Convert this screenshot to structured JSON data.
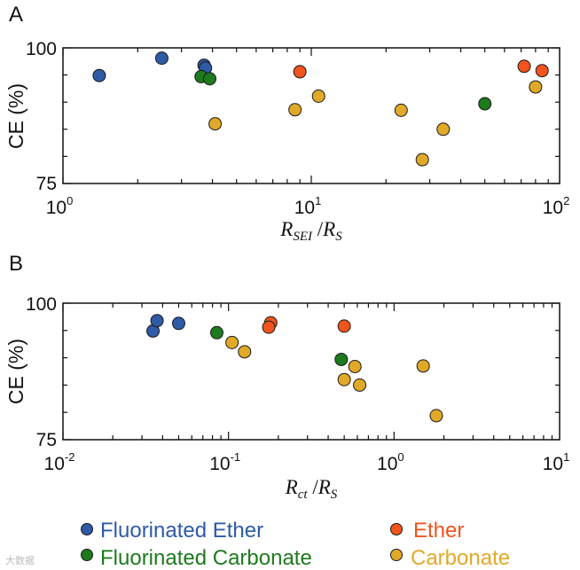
{
  "colors": {
    "fluorinated_ether": "#2e5aa6",
    "fluorinated_carbonate": "#1d7a1d",
    "ether": "#f1541c",
    "carbonate": "#e1a928",
    "axis": "#111111"
  },
  "legend": [
    {
      "key": "fluorinated_ether",
      "label": "Fluorinated Ether"
    },
    {
      "key": "ether",
      "label": "Ether"
    },
    {
      "key": "fluorinated_carbonate",
      "label": "Fluorinated Carbonate"
    },
    {
      "key": "carbonate",
      "label": "Carbonate"
    }
  ],
  "watermark": "大数据",
  "chart_data": [
    {
      "type": "scatter",
      "panel": "A",
      "xscale": "log",
      "xlim": [
        1,
        100
      ],
      "ylim": [
        75,
        100
      ],
      "ylabel": "CE (%)",
      "xlabel": {
        "base1": "R",
        "sub1": "SEI",
        "sep": " /",
        "base2": "R",
        "sub2": "S"
      },
      "xticks": [
        {
          "base": "10",
          "exp": "0"
        },
        {
          "base": "10",
          "exp": "1"
        },
        {
          "base": "10",
          "exp": "2"
        }
      ],
      "yticks": [
        "75",
        "100"
      ],
      "grid": false,
      "series": [
        {
          "key": "fluorinated_ether",
          "name": "Fluorinated Ether",
          "points": [
            [
              1.4,
              94.9
            ],
            [
              2.5,
              98.1
            ],
            [
              3.7,
              96.8
            ],
            [
              3.75,
              96.3
            ]
          ]
        },
        {
          "key": "fluorinated_carbonate",
          "name": "Fluorinated Carbonate",
          "points": [
            [
              3.6,
              94.7
            ],
            [
              3.9,
              94.3
            ],
            [
              50.0,
              89.7
            ]
          ]
        },
        {
          "key": "ether",
          "name": "Ether",
          "points": [
            [
              9.0,
              95.6
            ],
            [
              72.0,
              96.6
            ],
            [
              85.0,
              95.8
            ]
          ]
        },
        {
          "key": "carbonate",
          "name": "Carbonate",
          "points": [
            [
              4.1,
              86.0
            ],
            [
              8.6,
              88.6
            ],
            [
              10.7,
              91.1
            ],
            [
              23.0,
              88.5
            ],
            [
              28.0,
              79.4
            ],
            [
              34.0,
              85.0
            ],
            [
              80.0,
              92.8
            ]
          ]
        }
      ]
    },
    {
      "type": "scatter",
      "panel": "B",
      "xscale": "log",
      "xlim": [
        0.01,
        10
      ],
      "ylim": [
        75,
        100
      ],
      "ylabel": "CE (%)",
      "xlabel": {
        "base1": "R",
        "sub1": "ct",
        "sep": " /",
        "base2": "R",
        "sub2": "S"
      },
      "xticks": [
        {
          "base": "10",
          "exp": "-2"
        },
        {
          "base": "10",
          "exp": "-1"
        },
        {
          "base": "10",
          "exp": "0"
        },
        {
          "base": "10",
          "exp": "1"
        }
      ],
      "yticks": [
        "75",
        "100"
      ],
      "grid": false,
      "series": [
        {
          "key": "fluorinated_ether",
          "name": "Fluorinated Ether",
          "points": [
            [
              0.035,
              94.9
            ],
            [
              0.037,
              96.8
            ],
            [
              0.05,
              96.3
            ]
          ]
        },
        {
          "key": "fluorinated_carbonate",
          "name": "Fluorinated Carbonate",
          "points": [
            [
              0.085,
              94.6
            ],
            [
              0.48,
              89.7
            ]
          ]
        },
        {
          "key": "ether",
          "name": "Ether",
          "points": [
            [
              0.18,
              96.4
            ],
            [
              0.175,
              95.6
            ],
            [
              0.5,
              95.8
            ]
          ]
        },
        {
          "key": "carbonate",
          "name": "Carbonate",
          "points": [
            [
              0.105,
              92.8
            ],
            [
              0.125,
              91.1
            ],
            [
              0.5,
              86.0
            ],
            [
              0.58,
              88.4
            ],
            [
              0.62,
              85.0
            ],
            [
              1.5,
              88.5
            ],
            [
              1.8,
              79.4
            ]
          ]
        }
      ]
    }
  ]
}
